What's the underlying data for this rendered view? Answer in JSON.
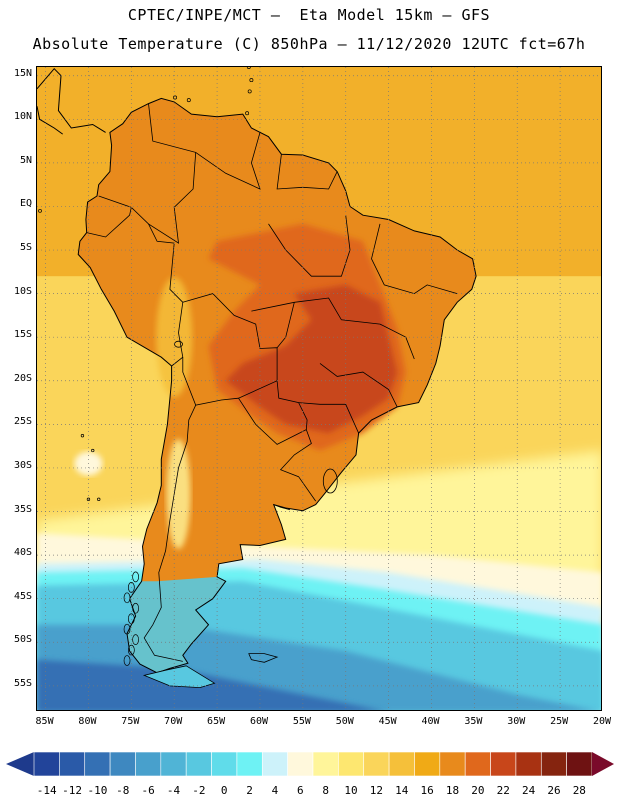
{
  "title": {
    "line1": "CPTEC/INPE/MCT –  Eta Model 15km – GFS",
    "line2": "Absolute Temperature (C) 850hPa – 11/12/2020 12UTC fct=67h"
  },
  "map": {
    "lat_ticks": [
      "15N",
      "10N",
      "5N",
      "EQ",
      "5S",
      "10S",
      "15S",
      "20S",
      "25S",
      "30S",
      "35S",
      "40S",
      "45S",
      "50S",
      "55S"
    ],
    "lon_ticks": [
      "85W",
      "80W",
      "75W",
      "70W",
      "65W",
      "60W",
      "55W",
      "50W",
      "45W",
      "40W",
      "35W",
      "30W",
      "25W",
      "20W"
    ],
    "lon_range_deg": [
      -86,
      -20
    ],
    "lat_range_deg": [
      16,
      -58
    ]
  },
  "colorbar": {
    "labels": [
      "-14",
      "-12",
      "-10",
      "-8",
      "-6",
      "-4",
      "-2",
      "0",
      "2",
      "4",
      "6",
      "8",
      "10",
      "12",
      "14",
      "16",
      "18",
      "20",
      "22",
      "24",
      "26",
      "28"
    ],
    "colors": [
      "#22449a",
      "#2a5aa8",
      "#3470b4",
      "#3e88c0",
      "#48a0cc",
      "#50b4d6",
      "#58c8e0",
      "#60dcea",
      "#6ef2f4",
      "#cdf2fa",
      "#fff8dc",
      "#fff59a",
      "#fde770",
      "#fad55a",
      "#f5c03a",
      "#f0aa16",
      "#e88a1c",
      "#e0681c",
      "#c8461a",
      "#a83212",
      "#85240f",
      "#6e1212"
    ],
    "under_color": "#1e3a8c",
    "over_color": "#7a0a2a"
  },
  "field_colors": {
    "ocean_north": "#f2b02a",
    "ocean_mid": "#fad55a",
    "ocean_south_warm": "#fff59a",
    "pale_band": "#fff8dc",
    "cool_band": "#cdf2fa",
    "cyan": "#6ef2f4",
    "light_blue": "#58c8e0",
    "mid_blue": "#48a0cc",
    "deep_blue": "#3470b4",
    "land_warm": "#e88a1c",
    "land_hot": "#e0681c",
    "land_hotter": "#c8461a",
    "andes": "#f5c03a",
    "coast": "#000000"
  }
}
